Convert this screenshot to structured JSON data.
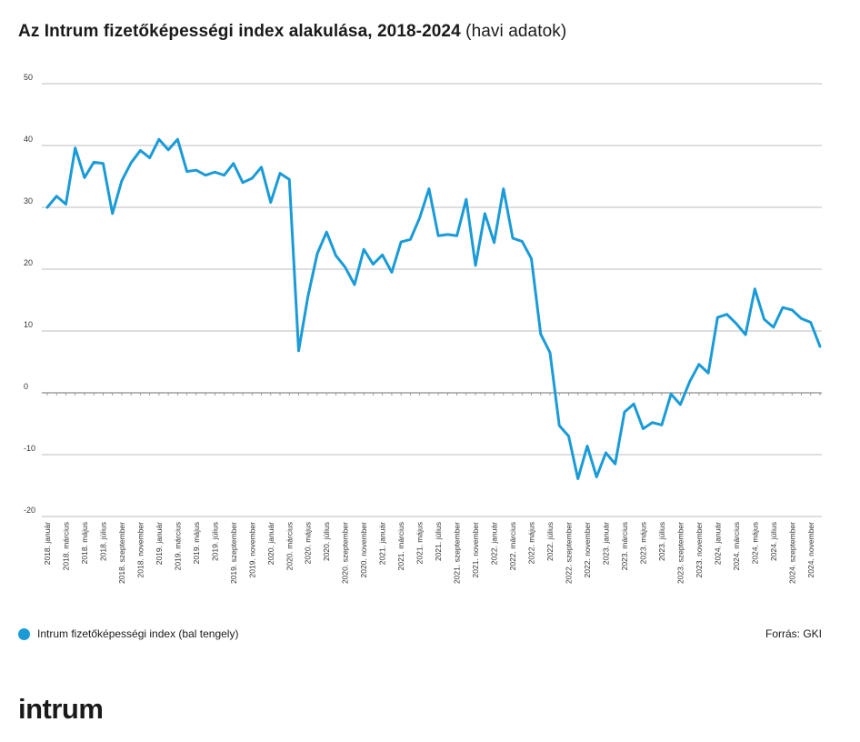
{
  "header": {
    "title_main": "Az Intrum fizetőképességi index alakulása, 2018-2024",
    "title_sub": "(havi adatok)"
  },
  "legend": {
    "label": "Intrum fizetőképességi index (bal tengely)",
    "color": "#1a9bd7"
  },
  "source": "Forrás: GKI",
  "logo": "intrum",
  "chart_data": {
    "type": "line",
    "title": "Az Intrum fizetőképességi index alakulása, 2018-2024",
    "subtitle": "(havi adatok)",
    "xlabel": "",
    "ylabel": "",
    "ylim": [
      -20,
      50
    ],
    "yticks": [
      -20,
      -10,
      0,
      10,
      20,
      30,
      40,
      50
    ],
    "grid": true,
    "legend_position": "bottom-left",
    "color": "#1a9bd7",
    "x_tick_labels": [
      "2018. január",
      "2018. március",
      "2018. május",
      "2018. július",
      "2018. szeptember",
      "2018. november",
      "2019. január",
      "2019. március",
      "2019. május",
      "2019. július",
      "2019. szeptember",
      "2019. november",
      "2020. január",
      "2020. március",
      "2020. május",
      "2020. július",
      "2020. szeptember",
      "2020. november",
      "2021. január",
      "2021. március",
      "2021. május",
      "2021. július",
      "2021. szeptember",
      "2021. november",
      "2022. január",
      "2022. március",
      "2022. május",
      "2022. július",
      "2022. szeptember",
      "2022. november",
      "2023. január",
      "2023. március",
      "2023. május",
      "2023. július",
      "2023. szeptember",
      "2023. november",
      "2024. január",
      "2024. március",
      "2024. május",
      "2024. július",
      "2024. szeptember",
      "2024. november"
    ],
    "series": [
      {
        "name": "Intrum fizetőképességi index (bal tengely)",
        "values": [
          30,
          31.8,
          30.5,
          39.6,
          34.8,
          37.3,
          37.1,
          29,
          34.3,
          37.2,
          39.2,
          38,
          41,
          39.3,
          41,
          35.8,
          36,
          35.2,
          35.7,
          35.2,
          37.1,
          34,
          34.7,
          36.5,
          30.8,
          35.5,
          34.5,
          6.8,
          15.6,
          22.5,
          26,
          22.2,
          20.3,
          17.5,
          23.2,
          20.8,
          22.3,
          19.5,
          24.4,
          24.8,
          28.3,
          33,
          25.4,
          25.6,
          25.4,
          31.3,
          20.6,
          29,
          24.3,
          33,
          25,
          24.5,
          21.7,
          9.5,
          6.5,
          -5.3,
          -7,
          -13.9,
          -8.6,
          -13.6,
          -9.7,
          -11.5,
          -3.1,
          -1.8,
          -5.8,
          -4.8,
          -5.2,
          -0.2,
          -1.9,
          1.8,
          4.6,
          3.2,
          12.2,
          12.7,
          11.2,
          9.4,
          16.8,
          11.9,
          10.6,
          13.8,
          13.4,
          12,
          11.4,
          7.5
        ]
      }
    ]
  }
}
